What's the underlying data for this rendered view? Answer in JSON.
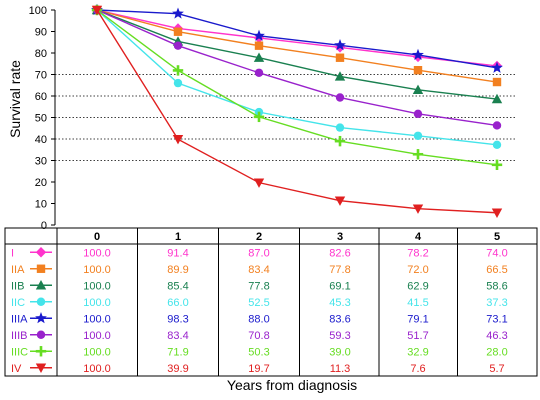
{
  "chart_data": {
    "type": "line",
    "x": [
      0,
      1,
      2,
      3,
      4,
      5
    ],
    "ylabel": "Survival rate",
    "xlabel": "Years from diagnosis",
    "ylim": [
      0,
      100
    ],
    "yticks": [
      0,
      10,
      20,
      30,
      40,
      50,
      60,
      70,
      80,
      90,
      100
    ],
    "gridlines_y": [
      30,
      40,
      50,
      60,
      70
    ],
    "series": [
      {
        "name": "I",
        "color": "#ff33cc",
        "marker": "diamond",
        "values": [
          "100.0",
          "91.4",
          "87.0",
          "82.6",
          "78.2",
          "74.0"
        ]
      },
      {
        "name": "IIA",
        "color": "#f28020",
        "marker": "square",
        "values": [
          "100.0",
          "89.9",
          "83.4",
          "77.8",
          "72.0",
          "66.5"
        ]
      },
      {
        "name": "IIB",
        "color": "#1a8050",
        "marker": "triangle",
        "values": [
          "100.0",
          "85.4",
          "77.8",
          "69.1",
          "62.9",
          "58.6"
        ]
      },
      {
        "name": "IIC",
        "color": "#44e4ea",
        "marker": "circle",
        "values": [
          "100.0",
          "66.0",
          "52.5",
          "45.3",
          "41.5",
          "37.3"
        ]
      },
      {
        "name": "IIIA",
        "color": "#1a1acc",
        "marker": "star",
        "values": [
          "100.0",
          "98.3",
          "88.0",
          "83.6",
          "79.1",
          "73.1"
        ]
      },
      {
        "name": "IIIB",
        "color": "#9922cc",
        "marker": "circle",
        "values": [
          "100.0",
          "83.4",
          "70.8",
          "59.3",
          "51.7",
          "46.3"
        ]
      },
      {
        "name": "IIIC",
        "color": "#66dd22",
        "marker": "plus",
        "values": [
          "100.0",
          "71.9",
          "50.3",
          "39.0",
          "32.9",
          "28.0"
        ]
      },
      {
        "name": "IV",
        "color": "#e02020",
        "marker": "triangle-down",
        "values": [
          "100.0",
          "39.9",
          "19.7",
          "11.3",
          "7.6",
          "5.7"
        ]
      }
    ]
  }
}
